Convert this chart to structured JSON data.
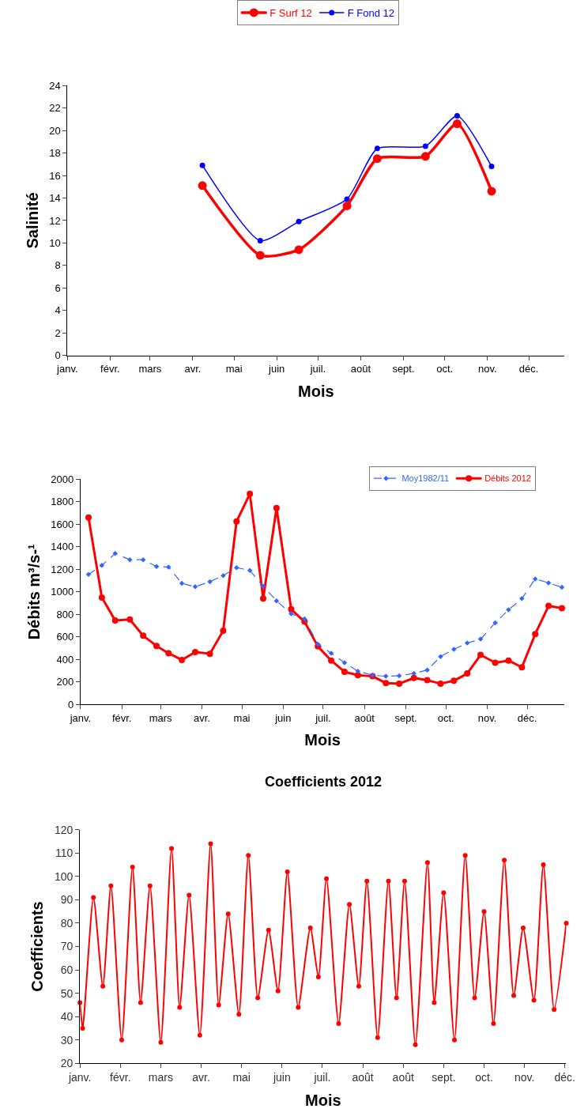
{
  "chart_data": [
    {
      "type": "line",
      "xlabel": "Mois",
      "ylabel": "Salinité",
      "x": [
        "2012-04-08",
        "2012-05-20",
        "2012-06-17",
        "2012-07-22",
        "2012-08-13",
        "2012-09-17",
        "2012-10-10",
        "2012-11-04"
      ],
      "series": [
        {
          "name": "F Surf 12",
          "color": "#ff0000",
          "marker": "circle",
          "line_style": "solid",
          "values": [
            15.1,
            8.9,
            9.4,
            13.3,
            17.5,
            17.7,
            20.6,
            14.6
          ]
        },
        {
          "name": "F Fond 12",
          "color": "#0000ff",
          "marker": "circle",
          "line_style": "solid",
          "values": [
            16.9,
            10.2,
            11.9,
            13.9,
            18.4,
            18.6,
            21.3,
            16.8
          ]
        }
      ],
      "xlim": [
        "2012-01-01",
        "2012-12-27"
      ],
      "xticks": [
        {
          "value": "2012-01-01",
          "label": "janv."
        },
        {
          "value": "2012-02-01",
          "label": "févr."
        },
        {
          "value": "2012-03-01",
          "label": "mars"
        },
        {
          "value": "2012-04-01",
          "label": "avr."
        },
        {
          "value": "2012-05-01",
          "label": "mai"
        },
        {
          "value": "2012-06-01",
          "label": "juin"
        },
        {
          "value": "2012-07-01",
          "label": "juil."
        },
        {
          "value": "2012-08-01",
          "label": "août"
        },
        {
          "value": "2012-09-01",
          "label": "sept."
        },
        {
          "value": "2012-10-01",
          "label": "oct."
        },
        {
          "value": "2012-11-01",
          "label": "nov."
        },
        {
          "value": "2012-12-01",
          "label": "déc."
        }
      ],
      "ylim": [
        0,
        24
      ],
      "yticks": [
        0,
        2,
        4,
        6,
        8,
        10,
        12,
        14,
        16,
        18,
        20,
        22,
        24
      ],
      "legend": "top"
    },
    {
      "type": "line",
      "xlabel": "Mois",
      "ylabel": "Débits m³/s-¹",
      "x": [
        "2012-01-07",
        "2012-01-17",
        "2012-01-27",
        "2012-02-07",
        "2012-02-17",
        "2012-02-27",
        "2012-03-07",
        "2012-03-17",
        "2012-03-27",
        "2012-04-07",
        "2012-04-17",
        "2012-04-27",
        "2012-05-07",
        "2012-05-17",
        "2012-05-27",
        "2012-06-07",
        "2012-06-17",
        "2012-06-27",
        "2012-07-07",
        "2012-07-17",
        "2012-07-27",
        "2012-08-07",
        "2012-08-17",
        "2012-08-27",
        "2012-09-07",
        "2012-09-17",
        "2012-09-27",
        "2012-10-07",
        "2012-10-17",
        "2012-10-27",
        "2012-11-07",
        "2012-11-17",
        "2012-11-27",
        "2012-12-07",
        "2012-12-17",
        "2012-12-27"
      ],
      "series": [
        {
          "name": "Moy1982/11",
          "color": "#3366ff",
          "marker": "diamond",
          "line_style": "dashed",
          "values": [
            1155,
            1235,
            1340,
            1285,
            1285,
            1225,
            1220,
            1075,
            1045,
            1090,
            1145,
            1215,
            1190,
            1050,
            920,
            805,
            760,
            535,
            455,
            370,
            295,
            260,
            250,
            255,
            275,
            305,
            425,
            490,
            545,
            580,
            725,
            840,
            940,
            1115,
            1080,
            1040
          ]
        },
        {
          "name": "Débits 2012",
          "color": "#ff0000",
          "marker": "circle",
          "line_style": "solid",
          "values": [
            1660,
            950,
            745,
            755,
            610,
            520,
            455,
            395,
            465,
            450,
            655,
            1625,
            1870,
            940,
            1745,
            845,
            735,
            515,
            390,
            290,
            260,
            250,
            190,
            185,
            235,
            215,
            185,
            210,
            275,
            440,
            370,
            390,
            330,
            625,
            875,
            855
          ]
        }
      ],
      "xlim": [
        "2012-01-01",
        "2012-12-29"
      ],
      "xticks": [
        {
          "value": "2012-01-01",
          "label": "janv."
        },
        {
          "value": "2012-02-01",
          "label": "févr."
        },
        {
          "value": "2012-03-01",
          "label": "mars"
        },
        {
          "value": "2012-04-01",
          "label": "avr."
        },
        {
          "value": "2012-05-01",
          "label": "mai"
        },
        {
          "value": "2012-06-01",
          "label": "juin"
        },
        {
          "value": "2012-07-01",
          "label": "juil."
        },
        {
          "value": "2012-08-01",
          "label": "août"
        },
        {
          "value": "2012-09-01",
          "label": "sept."
        },
        {
          "value": "2012-10-01",
          "label": "oct."
        },
        {
          "value": "2012-11-01",
          "label": "nov."
        },
        {
          "value": "2012-12-01",
          "label": "déc."
        }
      ],
      "ylim": [
        0,
        2000
      ],
      "yticks": [
        0,
        200,
        400,
        600,
        800,
        1000,
        1200,
        1400,
        1600,
        1800,
        2000
      ],
      "legend": "top right"
    },
    {
      "type": "line",
      "title": "Coefficients 2012",
      "xlabel": "Mois",
      "ylabel": "Coefficients",
      "x": [
        "2012-01-01",
        "2012-01-03",
        "2012-01-11",
        "2012-01-18",
        "2012-01-24",
        "2012-02-01",
        "2012-02-09",
        "2012-02-15",
        "2012-02-22",
        "2012-03-01",
        "2012-03-09",
        "2012-03-15",
        "2012-03-22",
        "2012-03-30",
        "2012-04-07",
        "2012-04-13",
        "2012-04-20",
        "2012-04-28",
        "2012-05-05",
        "2012-05-12",
        "2012-05-20",
        "2012-05-27",
        "2012-06-03",
        "2012-06-11",
        "2012-06-20",
        "2012-06-26",
        "2012-07-02",
        "2012-07-11",
        "2012-07-19",
        "2012-07-26",
        "2012-08-01",
        "2012-08-09",
        "2012-08-17",
        "2012-08-23",
        "2012-08-29",
        "2012-09-06",
        "2012-09-15",
        "2012-09-20",
        "2012-09-27",
        "2012-10-05",
        "2012-10-13",
        "2012-10-20",
        "2012-10-27",
        "2012-11-03",
        "2012-11-11",
        "2012-11-18",
        "2012-11-25",
        "2012-12-03",
        "2012-12-10",
        "2012-12-18",
        "2012-12-27"
      ],
      "series": [
        {
          "color": "#ff0000",
          "marker": "circle",
          "line_style": "solid",
          "values": [
            46,
            35,
            91,
            53,
            96,
            30,
            104,
            46,
            96,
            29,
            112,
            44,
            92,
            32,
            114,
            45,
            84,
            41,
            109,
            48,
            77,
            51,
            102,
            44,
            78,
            57,
            99,
            37,
            88,
            53,
            98,
            31,
            98,
            48,
            98,
            28,
            106,
            46,
            93,
            30,
            109,
            48,
            85,
            37,
            107,
            49,
            78,
            47,
            105,
            43,
            80
          ]
        }
      ],
      "xlim": [
        "2012-01-01",
        "2012-12-27"
      ],
      "xticks": [
        {
          "value": "2012-01-01",
          "label": "janv."
        },
        {
          "value": "2012-01-31",
          "label": "févr."
        },
        {
          "value": "2012-03-01",
          "label": "mars"
        },
        {
          "value": "2012-03-31",
          "label": "avr."
        },
        {
          "value": "2012-04-30",
          "label": "mai"
        },
        {
          "value": "2012-05-30",
          "label": "juin"
        },
        {
          "value": "2012-06-29",
          "label": "juil."
        },
        {
          "value": "2012-07-29",
          "label": "août"
        },
        {
          "value": "2012-08-28",
          "label": "août"
        },
        {
          "value": "2012-09-27",
          "label": "sept."
        },
        {
          "value": "2012-10-27",
          "label": "oct."
        },
        {
          "value": "2012-11-26",
          "label": "nov."
        },
        {
          "value": "2012-12-26",
          "label": "déc."
        }
      ],
      "ylim": [
        20,
        120
      ],
      "yticks": [
        20,
        30,
        40,
        50,
        60,
        70,
        80,
        90,
        100,
        110,
        120
      ]
    }
  ]
}
